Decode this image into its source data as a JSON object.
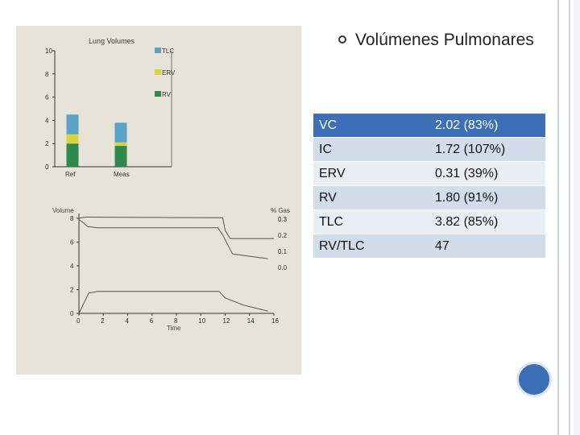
{
  "bullet": {
    "text": "Volúmenes Pulmonares"
  },
  "table": {
    "header": {
      "label": "VC",
      "value": "2.02 (83%)"
    },
    "rows": [
      {
        "label": "IC",
        "value": "1.72 (107%)"
      },
      {
        "label": "ERV",
        "value": "0.31 (39%)"
      },
      {
        "label": "RV",
        "value": "1.80 (91%)"
      },
      {
        "label": "TLC",
        "value": "3.82 (85%)"
      },
      {
        "label": "RV/TLC",
        "value": "47"
      }
    ]
  },
  "chart_data": [
    {
      "type": "bar",
      "title": "Lung Volumes",
      "categories": [
        "Ref",
        "Meas"
      ],
      "yticks": [
        0,
        2,
        4,
        6,
        8,
        10
      ],
      "ylim": [
        0,
        10
      ],
      "legend": [
        "TLC",
        "ERV",
        "RV"
      ],
      "series": [
        {
          "name": "RV",
          "values": [
            2.0,
            1.8
          ]
        },
        {
          "name": "ERV",
          "values": [
            0.8,
            0.3
          ]
        },
        {
          "name": "TLC",
          "values": [
            1.7,
            1.7
          ]
        }
      ],
      "colors": {
        "TLC": "#5aa2c8",
        "ERV": "#d9d43a",
        "RV": "#2f8a4a"
      }
    },
    {
      "type": "line",
      "ylabel_left": "Volume",
      "ylabel_right": "% Gas",
      "xlabel": "Time",
      "xticks": [
        0,
        2,
        4,
        6,
        8,
        10,
        12,
        14,
        16
      ],
      "yticks_left": [
        0,
        2,
        4,
        6,
        8
      ],
      "yticks_right": [
        "0.3",
        "0.2",
        "0.1",
        "0.0"
      ],
      "xlim": [
        0,
        16
      ],
      "ylim": [
        0,
        8
      ],
      "series": [
        {
          "values_x": [
            0,
            0.5,
            1,
            11.8,
            12,
            12.4,
            16
          ],
          "values_y": [
            8,
            8.1,
            8.1,
            8.05,
            7.0,
            6.3,
            6.3
          ]
        },
        {
          "values_x": [
            0,
            0.4,
            0.7,
            1.5,
            11.4,
            11.8,
            12.6,
            15.5
          ],
          "values_y": [
            7.9,
            7.6,
            7.3,
            7.2,
            7.2,
            6.6,
            5.0,
            4.6
          ]
        },
        {
          "values_x": [
            0,
            0.8,
            1.5,
            11.5,
            12,
            13.5,
            15.5
          ],
          "values_y": [
            0,
            1.7,
            1.85,
            1.85,
            1.3,
            0.7,
            0.2
          ]
        }
      ]
    }
  ]
}
